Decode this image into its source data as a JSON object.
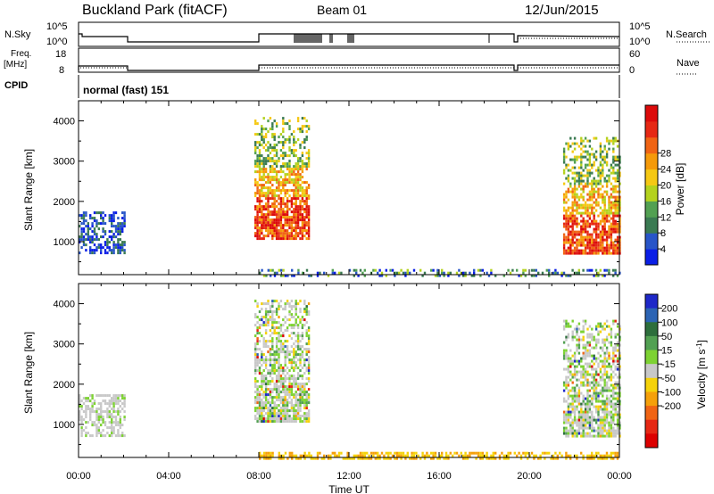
{
  "header": {
    "station": "Buckland Park (fitACF)",
    "beam": "Beam 01",
    "date": "12/Jun/2015"
  },
  "top_panels": {
    "nsky_label": "N.Sky",
    "nsky_ticks": [
      "10^5",
      "10^0"
    ],
    "nsearch_label": "N.Search",
    "nsearch_ticks": [
      "10^5",
      "10^0"
    ],
    "freq_label": "Freq.",
    "freq_unit": "[MHz]",
    "freq_ticks": [
      "18",
      "8"
    ],
    "nave_label": "Nave",
    "nave_ticks": [
      "60",
      "0"
    ],
    "cpid_label": "CPID",
    "cpid_value": "normal (fast) 151"
  },
  "chart_data": [
    {
      "type": "heatmap",
      "panel": "power",
      "ylabel": "Slant Range [km]",
      "xlabel": "Time UT",
      "x_ticks": [
        "00:00",
        "04:00",
        "08:00",
        "12:00",
        "16:00",
        "20:00",
        "00:00"
      ],
      "x_range_hours": [
        0,
        24
      ],
      "y_ticks": [
        1000,
        2000,
        3000,
        4000
      ],
      "ylim": [
        180,
        4500
      ],
      "colorbar": {
        "label": "Power [dB]",
        "ticks": [
          4,
          8,
          12,
          16,
          20,
          24,
          28
        ],
        "colors": [
          "#0a1ee6",
          "#2855c8",
          "#3a7a52",
          "#52a052",
          "#b4d21e",
          "#f5c814",
          "#f59a0a",
          "#f06414",
          "#e62814",
          "#dc0a0a"
        ]
      },
      "scatter_regions": [
        {
          "t": [
            0.0,
            2.0
          ],
          "r": [
            700,
            1750
          ],
          "level": "low-mid"
        },
        {
          "t": [
            7.8,
            10.2
          ],
          "r": [
            1100,
            4100
          ],
          "level": "high"
        },
        {
          "t": [
            21.5,
            24.0
          ],
          "r": [
            700,
            3600
          ],
          "level": "high"
        },
        {
          "t": [
            8.0,
            24.0
          ],
          "r": [
            180,
            320
          ],
          "level": "low"
        }
      ]
    },
    {
      "type": "heatmap",
      "panel": "velocity",
      "ylabel": "Slant Range [km]",
      "xlabel": "Time UT",
      "x_ticks": [
        "00:00",
        "04:00",
        "08:00",
        "12:00",
        "16:00",
        "20:00",
        "00:00"
      ],
      "x_range_hours": [
        0,
        24
      ],
      "y_ticks": [
        1000,
        2000,
        3000,
        4000
      ],
      "ylim": [
        180,
        4500
      ],
      "colorbar": {
        "label": "Velocity [m s^-1]",
        "ticks": [
          200,
          100,
          50,
          15,
          -15,
          -50,
          -100,
          -200
        ],
        "colors": [
          "#1e28c8",
          "#2c64b4",
          "#2d6e3c",
          "#52a052",
          "#7dd232",
          "#c8c8c8",
          "#f5d20a",
          "#f5a00a",
          "#f06414",
          "#e62814",
          "#dc0000"
        ]
      },
      "scatter_regions": [
        {
          "t": [
            0.0,
            2.0
          ],
          "r": [
            700,
            1750
          ],
          "level": "near-zero"
        },
        {
          "t": [
            7.8,
            10.2
          ],
          "r": [
            1100,
            4100
          ],
          "level": "mixed"
        },
        {
          "t": [
            21.5,
            24.0
          ],
          "r": [
            700,
            3600
          ],
          "level": "mixed"
        },
        {
          "t": [
            8.0,
            24.0
          ],
          "r": [
            180,
            320
          ],
          "level": "negative"
        }
      ]
    }
  ],
  "colors": {
    "frame": "#000000",
    "background": "#ffffff"
  }
}
